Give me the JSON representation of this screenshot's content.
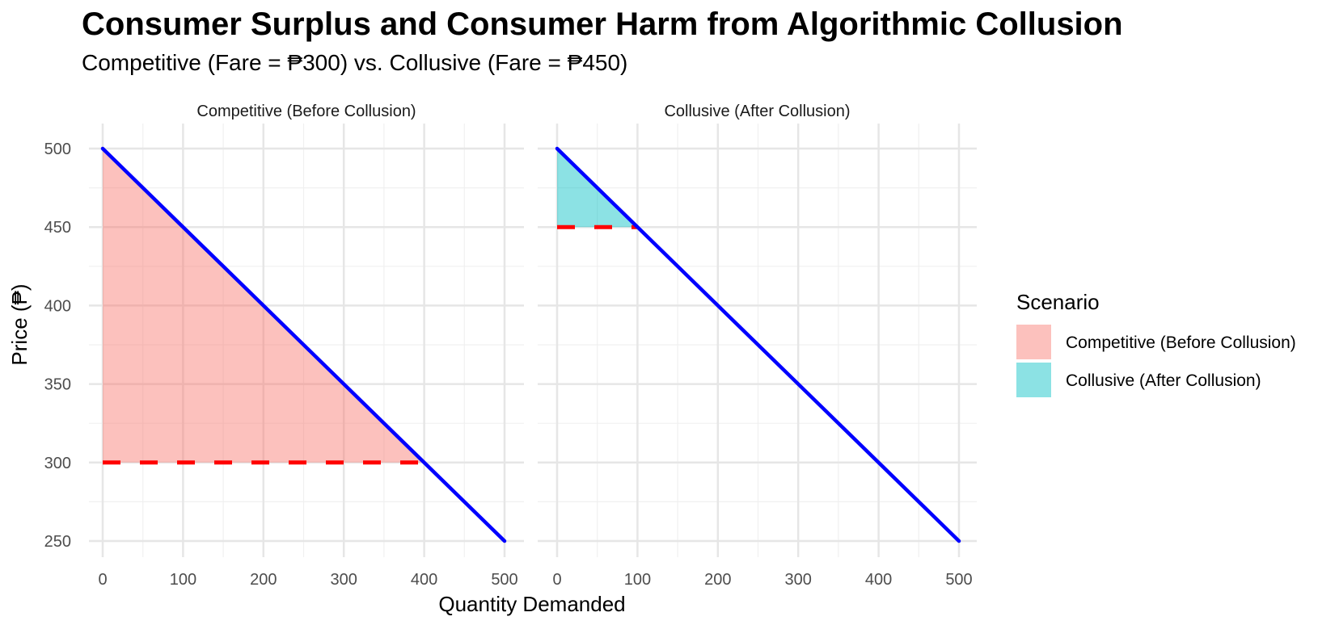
{
  "title": "Consumer Surplus and Consumer Harm from Algorithmic Collusion",
  "subtitle": "Competitive (Fare = ₱300) vs. Collusive (Fare = ₱450)",
  "chart_data": {
    "type": "area",
    "xlabel": "Quantity Demanded",
    "ylabel": "Price (₱)",
    "xlim": [
      0,
      500
    ],
    "ylim": [
      250,
      500
    ],
    "x_ticks": [
      0,
      100,
      200,
      300,
      400,
      500
    ],
    "y_ticks": [
      250,
      300,
      350,
      400,
      450,
      500
    ],
    "grid": true,
    "demand_curve": {
      "x": [
        0,
        500
      ],
      "y": [
        500,
        250
      ],
      "color": "#0000ff"
    },
    "legend": {
      "title": "Scenario",
      "position": "right",
      "entries": [
        {
          "label": "Competitive (Before Collusion)",
          "color": "#f8766d"
        },
        {
          "label": "Collusive (After Collusion)",
          "color": "#00bfc4"
        }
      ]
    },
    "panels": [
      {
        "label": "Competitive (Before Collusion)",
        "fare": 300,
        "quantity_at_fare": 400,
        "surplus_polygon": [
          [
            0,
            500
          ],
          [
            400,
            300
          ],
          [
            0,
            300
          ]
        ],
        "fill_color": "#f8766d"
      },
      {
        "label": "Collusive (After Collusion)",
        "fare": 450,
        "quantity_at_fare": 100,
        "surplus_polygon": [
          [
            0,
            500
          ],
          [
            100,
            450
          ],
          [
            0,
            450
          ]
        ],
        "fill_color": "#00bfc4"
      }
    ]
  }
}
